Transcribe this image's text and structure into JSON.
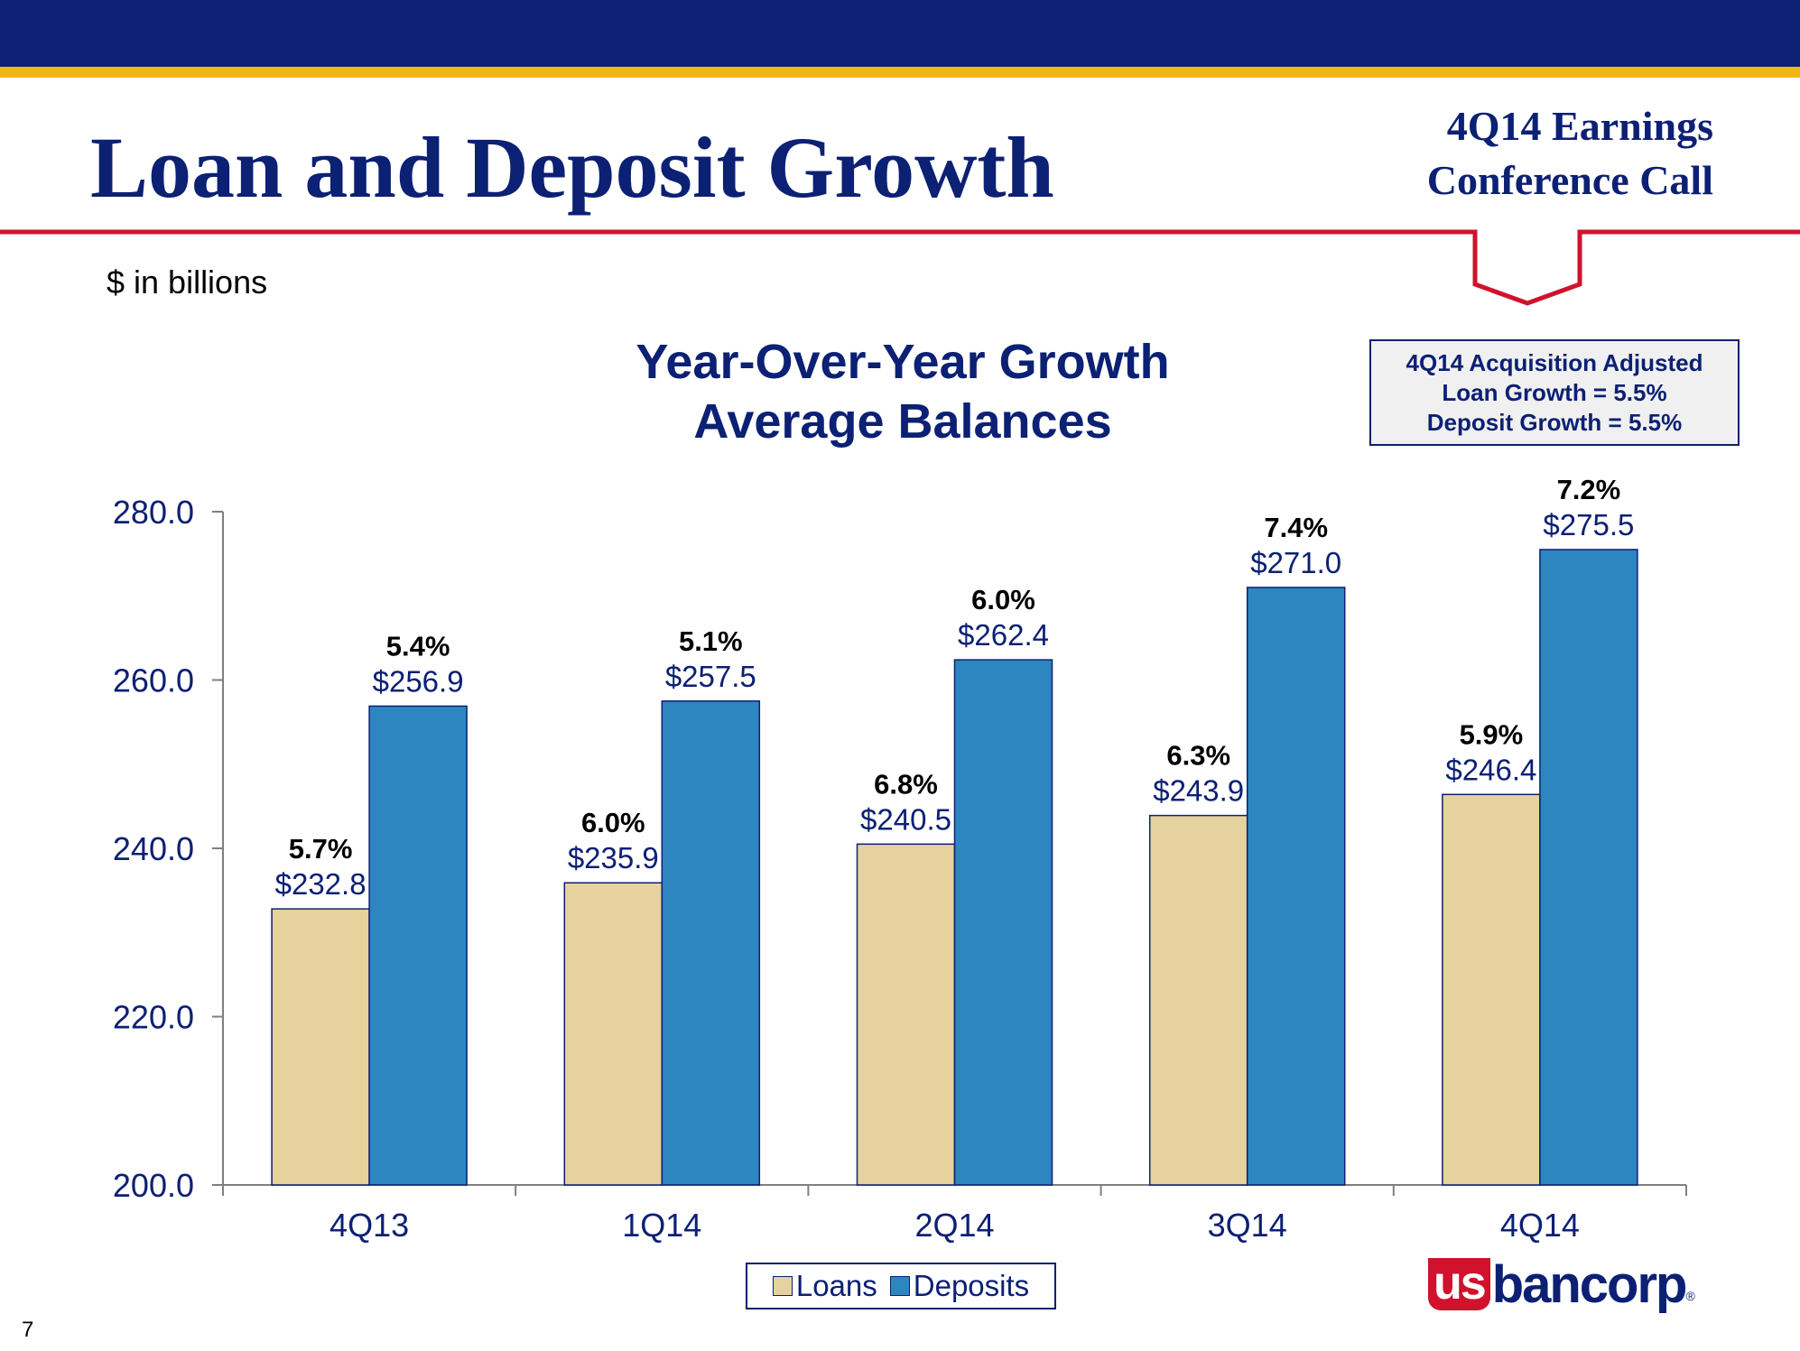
{
  "header": {
    "title": "Loan and Deposit Growth",
    "event_line1": "4Q14 Earnings",
    "event_line2": "Conference Call"
  },
  "units_note": "$ in billions",
  "callout": {
    "line1": "4Q14 Acquisition Adjusted",
    "line2": "Loan Growth = 5.5%",
    "line3": "Deposit Growth = 5.5%"
  },
  "colors": {
    "navy": "#0c2074",
    "gold": "#f5b31a",
    "red": "#d0122d",
    "loans": "#e6d29c",
    "deposits": "#2e86c1"
  },
  "logo": {
    "us": "us",
    "bancorp": "bancorp",
    "registered": "®"
  },
  "page_number": "7",
  "chart_data": {
    "type": "bar",
    "title": "Year-Over-Year Growth",
    "subtitle": "Average Balances",
    "categories": [
      "4Q13",
      "1Q14",
      "2Q14",
      "3Q14",
      "4Q14"
    ],
    "series": [
      {
        "name": "Loans",
        "values": [
          232.8,
          235.9,
          240.5,
          243.9,
          246.4
        ],
        "value_labels": [
          "$232.8",
          "$235.9",
          "$240.5",
          "$243.9",
          "$246.4"
        ],
        "growth_labels": [
          "5.7%",
          "6.0%",
          "6.8%",
          "6.3%",
          "5.9%"
        ],
        "color": "#e6d29c"
      },
      {
        "name": "Deposits",
        "values": [
          256.9,
          257.5,
          262.4,
          271.0,
          275.5
        ],
        "value_labels": [
          "$256.9",
          "$257.5",
          "$262.4",
          "$271.0",
          "$275.5"
        ],
        "growth_labels": [
          "5.4%",
          "5.1%",
          "6.0%",
          "7.4%",
          "7.2%"
        ],
        "color": "#2e86c1"
      }
    ],
    "ylim": [
      200,
      280
    ],
    "yticks": [
      200,
      220,
      240,
      260,
      280
    ],
    "ytick_labels": [
      "200.0",
      "220.0",
      "240.0",
      "260.0",
      "280.0"
    ],
    "xlabel": "",
    "ylabel": "",
    "grid": false,
    "legend": "bottom-center"
  }
}
